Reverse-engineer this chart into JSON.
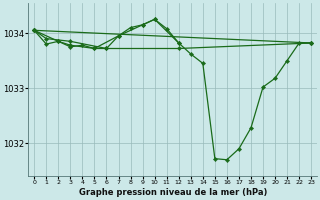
{
  "background_color": "#cce8e8",
  "grid_color": "#99bbbb",
  "line_color": "#1a6b1a",
  "title": "Graphe pression niveau de la mer (hPa)",
  "xlim": [
    -0.5,
    23.5
  ],
  "ylim": [
    1031.4,
    1034.55
  ],
  "yticks": [
    1032,
    1033,
    1034
  ],
  "xticks": [
    0,
    1,
    2,
    3,
    4,
    5,
    6,
    7,
    8,
    9,
    10,
    11,
    12,
    13,
    14,
    15,
    16,
    17,
    18,
    19,
    20,
    21,
    22,
    23
  ],
  "lines": [
    {
      "x": [
        0,
        1,
        2,
        3,
        4,
        5,
        6,
        7,
        8,
        9,
        10,
        11,
        12,
        13,
        14,
        15,
        16,
        17,
        18,
        19,
        20,
        21,
        22,
        23
      ],
      "y": [
        1034.05,
        1033.8,
        1033.85,
        1033.75,
        1033.78,
        1033.72,
        1033.72,
        1033.95,
        1034.1,
        1034.15,
        1034.25,
        1034.08,
        1033.82,
        1033.62,
        1033.45,
        1031.72,
        1031.7,
        1031.9,
        1032.28,
        1033.02,
        1033.18,
        1033.5,
        1033.82,
        1033.82
      ]
    },
    {
      "x": [
        0,
        23
      ],
      "y": [
        1034.05,
        1033.82
      ]
    },
    {
      "x": [
        0,
        1,
        3,
        6,
        12,
        23
      ],
      "y": [
        1034.05,
        1033.9,
        1033.85,
        1033.72,
        1033.72,
        1033.82
      ]
    },
    {
      "x": [
        0,
        2,
        3,
        5,
        7,
        9,
        10,
        12
      ],
      "y": [
        1034.05,
        1033.85,
        1033.78,
        1033.72,
        1033.95,
        1034.15,
        1034.25,
        1033.82
      ]
    }
  ]
}
